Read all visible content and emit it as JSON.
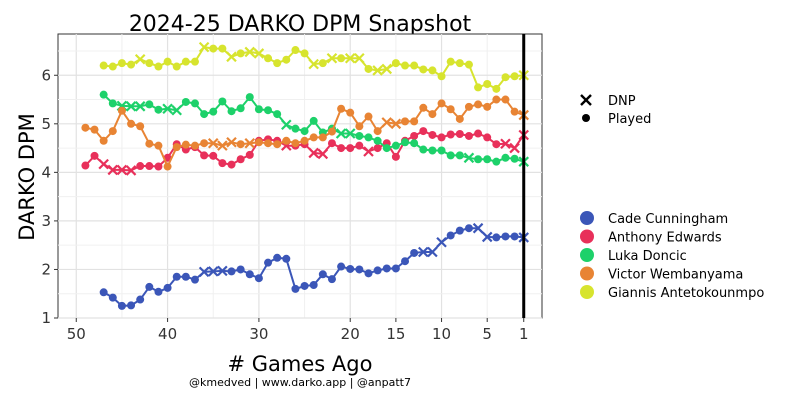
{
  "chart_data": {
    "type": "line",
    "title": "2024-25 DARKO DPM Snapshot",
    "xlabel": "# Games Ago",
    "ylabel": "DARKO DPM",
    "caption": "@kmedved | www.darko.app | @anpatt7",
    "xlim": [
      52,
      -1
    ],
    "ylim": [
      1,
      6.85
    ],
    "x_ticks": [
      50,
      40,
      30,
      20,
      15,
      10,
      5,
      1
    ],
    "y_ticks": [
      1,
      2,
      3,
      4,
      5,
      6
    ],
    "grid": true,
    "current_game_line_x": 1,
    "shape_legend": [
      {
        "label": "DNP",
        "marker": "x"
      },
      {
        "label": "Played",
        "marker": "circle"
      }
    ],
    "series": [
      {
        "name": "Cade Cunningham",
        "color": "#3b56b8",
        "x": [
          47,
          46,
          45,
          44,
          43,
          42,
          41,
          40,
          39,
          38,
          37,
          36,
          35,
          34,
          33,
          32,
          31,
          30,
          29,
          28,
          27,
          26,
          25,
          24,
          23,
          22,
          21,
          20,
          19,
          18,
          17,
          16,
          15,
          14,
          13,
          12,
          11,
          10,
          9,
          8,
          7,
          6,
          5,
          4,
          3,
          2,
          1
        ],
        "y": [
          1.53,
          1.42,
          1.25,
          1.26,
          1.38,
          1.64,
          1.54,
          1.62,
          1.85,
          1.85,
          1.79,
          1.95,
          1.96,
          1.97,
          1.96,
          2.0,
          1.9,
          1.82,
          2.14,
          2.24,
          2.22,
          1.6,
          1.66,
          1.68,
          1.9,
          1.8,
          2.06,
          2.01,
          2.0,
          1.92,
          1.98,
          2.02,
          2.02,
          2.17,
          2.34,
          2.36,
          2.36,
          2.56,
          2.7,
          2.8,
          2.85,
          2.85,
          2.67,
          2.66,
          2.68,
          2.68,
          2.66
        ],
        "dnp": [
          36,
          35,
          34,
          12,
          11,
          10,
          6,
          5,
          1
        ]
      },
      {
        "name": "Anthony Edwards",
        "color": "#e8305a",
        "x": [
          49,
          48,
          47,
          46,
          45,
          44,
          43,
          42,
          41,
          40,
          39,
          38,
          37,
          36,
          35,
          34,
          33,
          32,
          31,
          30,
          29,
          28,
          27,
          26,
          25,
          24,
          23,
          22,
          21,
          20,
          19,
          18,
          17,
          16,
          15,
          14,
          13,
          12,
          11,
          10,
          9,
          8,
          7,
          6,
          5,
          4,
          3,
          2,
          1
        ],
        "y": [
          4.14,
          4.34,
          4.17,
          4.05,
          4.05,
          4.04,
          4.13,
          4.13,
          4.12,
          4.3,
          4.58,
          4.47,
          4.52,
          4.35,
          4.34,
          4.19,
          4.16,
          4.27,
          4.36,
          4.65,
          4.68,
          4.65,
          4.55,
          4.55,
          4.58,
          4.4,
          4.38,
          4.6,
          4.5,
          4.5,
          4.55,
          4.43,
          4.5,
          4.6,
          4.32,
          4.65,
          4.75,
          4.85,
          4.77,
          4.72,
          4.78,
          4.79,
          4.75,
          4.8,
          4.72,
          4.58,
          4.59,
          4.5,
          4.77
        ],
        "dnp": [
          47,
          46,
          45,
          44,
          27,
          24,
          23,
          18,
          3,
          2,
          1
        ]
      },
      {
        "name": "Luka Doncic",
        "color": "#1dd16a",
        "x": [
          47,
          46,
          45,
          44,
          43,
          42,
          41,
          40,
          39,
          38,
          37,
          36,
          35,
          34,
          33,
          32,
          31,
          30,
          29,
          28,
          27,
          26,
          25,
          24,
          23,
          22,
          21,
          20,
          19,
          18,
          17,
          16,
          15,
          14,
          13,
          12,
          11,
          10,
          9,
          8,
          7,
          6,
          5,
          4,
          3,
          2,
          1
        ],
        "y": [
          5.6,
          5.42,
          5.37,
          5.36,
          5.36,
          5.4,
          5.29,
          5.31,
          5.28,
          5.45,
          5.42,
          5.2,
          5.25,
          5.46,
          5.26,
          5.32,
          5.55,
          5.3,
          5.28,
          5.2,
          4.98,
          4.9,
          4.85,
          5.06,
          4.82,
          4.9,
          4.8,
          4.8,
          4.75,
          4.72,
          4.65,
          4.5,
          4.55,
          4.62,
          4.6,
          4.47,
          4.45,
          4.45,
          4.35,
          4.35,
          4.3,
          4.27,
          4.27,
          4.22,
          4.3,
          4.28,
          4.22
        ],
        "dnp": [
          45,
          44,
          43,
          40,
          39,
          27,
          21,
          20,
          7,
          1
        ]
      },
      {
        "name": "Victor Wembanyama",
        "color": "#e88434",
        "x": [
          49,
          48,
          47,
          46,
          45,
          44,
          43,
          42,
          41,
          40,
          39,
          38,
          37,
          36,
          35,
          34,
          33,
          32,
          31,
          30,
          29,
          28,
          27,
          26,
          25,
          24,
          23,
          22,
          21,
          20,
          19,
          18,
          17,
          16,
          15,
          14,
          13,
          12,
          11,
          10,
          9,
          8,
          7,
          6,
          5,
          4,
          3,
          2,
          1
        ],
        "y": [
          4.92,
          4.88,
          4.65,
          4.85,
          5.27,
          5.0,
          4.95,
          4.59,
          4.55,
          4.12,
          4.52,
          4.57,
          4.55,
          4.6,
          4.6,
          4.55,
          4.62,
          4.58,
          4.6,
          4.62,
          4.6,
          4.58,
          4.65,
          4.6,
          4.65,
          4.72,
          4.72,
          4.84,
          5.31,
          5.23,
          4.95,
          5.15,
          4.85,
          5.03,
          5.0,
          5.05,
          5.05,
          5.33,
          5.2,
          5.42,
          5.3,
          5.1,
          5.35,
          5.4,
          5.35,
          5.5,
          5.5,
          5.25,
          5.18
        ],
        "dnp": [
          35,
          34,
          33,
          31,
          16,
          15,
          1
        ]
      },
      {
        "name": "Giannis Antetokounmpo",
        "color": "#d7e42e",
        "x": [
          47,
          46,
          45,
          44,
          43,
          42,
          41,
          40,
          39,
          38,
          37,
          36,
          35,
          34,
          33,
          32,
          31,
          30,
          29,
          28,
          27,
          26,
          25,
          24,
          23,
          22,
          21,
          20,
          19,
          18,
          17,
          16,
          15,
          14,
          13,
          12,
          11,
          10,
          9,
          8,
          7,
          6,
          5,
          4,
          3,
          2,
          1
        ],
        "y": [
          6.2,
          6.18,
          6.25,
          6.22,
          6.33,
          6.25,
          6.18,
          6.28,
          6.18,
          6.28,
          6.28,
          6.58,
          6.55,
          6.55,
          6.38,
          6.45,
          6.48,
          6.45,
          6.35,
          6.25,
          6.32,
          6.52,
          6.45,
          6.23,
          6.25,
          6.35,
          6.35,
          6.35,
          6.35,
          6.13,
          6.1,
          6.13,
          6.25,
          6.2,
          6.2,
          6.12,
          6.1,
          5.98,
          6.28,
          6.25,
          6.22,
          5.75,
          5.82,
          5.72,
          5.96,
          5.98,
          6.0
        ],
        "dnp": [
          43,
          36,
          33,
          31,
          30,
          24,
          22,
          20,
          19,
          17,
          16,
          1
        ]
      }
    ]
  }
}
